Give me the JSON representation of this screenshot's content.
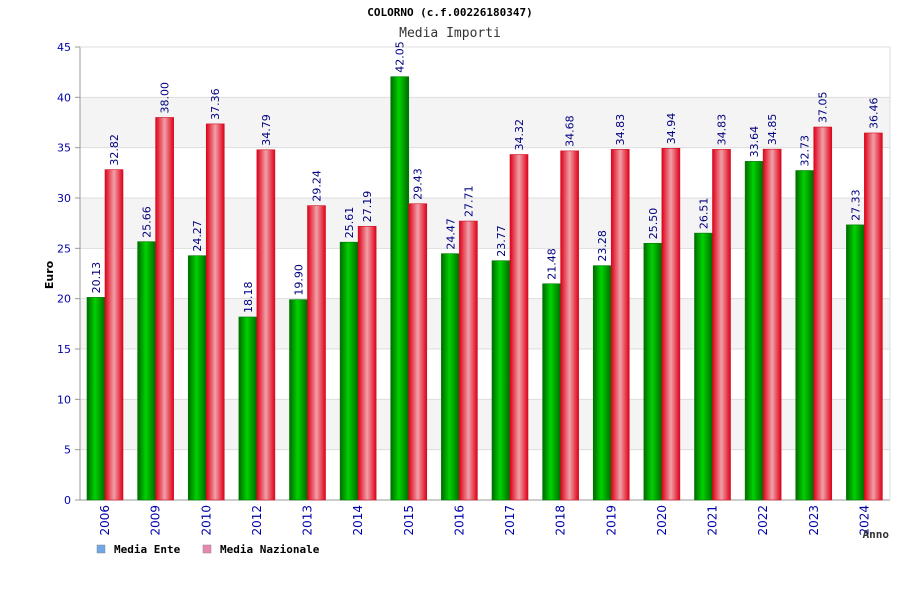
{
  "chart_data": {
    "type": "bar",
    "title": "COLORNO (c.f.00226180347)",
    "subtitle": "Media Importi",
    "xlabel": "Anno",
    "ylabel": "Euro",
    "ylim": [
      0,
      45
    ],
    "yticks": [
      0,
      5,
      10,
      15,
      20,
      25,
      30,
      35,
      40,
      45
    ],
    "grid": true,
    "legend_position": "bottom-left",
    "categories": [
      "2006",
      "2009",
      "2010",
      "2012",
      "2013",
      "2014",
      "2015",
      "2016",
      "2017",
      "2018",
      "2019",
      "2020",
      "2021",
      "2022",
      "2023",
      "2024"
    ],
    "series": [
      {
        "name": "Media Ente",
        "legend_color": "#6fa8e8",
        "bar_color": "#00b000",
        "values": [
          20.13,
          25.66,
          24.27,
          18.18,
          19.9,
          25.61,
          42.05,
          24.47,
          23.77,
          21.48,
          23.28,
          25.5,
          26.51,
          33.64,
          32.73,
          27.33
        ],
        "labels": [
          "20.13",
          "25.66",
          "24.27",
          "18.18",
          "19.90",
          "25.61",
          "42.05",
          "24.47",
          "23.77",
          "21.48",
          "23.28",
          "25.50",
          "26.51",
          "33.64",
          "32.73",
          "27.33"
        ]
      },
      {
        "name": "Media Nazionale",
        "legend_color": "#e888b0",
        "bar_color": "#ee2233",
        "values": [
          32.82,
          38.0,
          37.36,
          34.79,
          29.24,
          27.19,
          29.43,
          27.71,
          34.32,
          34.68,
          34.83,
          34.94,
          34.83,
          34.85,
          37.05,
          36.46
        ],
        "labels": [
          "32.82",
          "38.00",
          "37.36",
          "34.79",
          "29.24",
          "27.19",
          "29.43",
          "27.71",
          "34.32",
          "34.68",
          "34.83",
          "34.94",
          "34.83",
          "34.85",
          "37.05",
          "36.46"
        ]
      }
    ]
  }
}
